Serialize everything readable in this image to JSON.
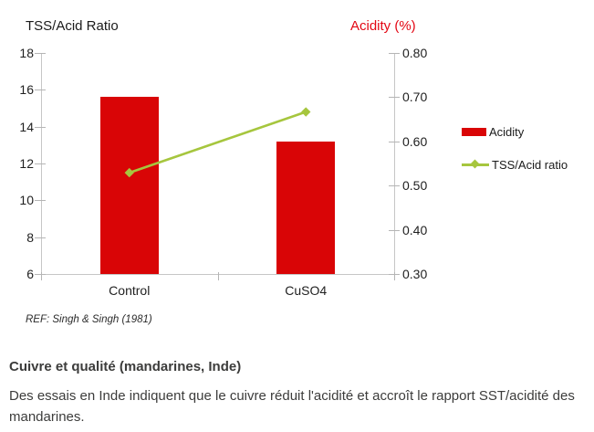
{
  "colors": {
    "bar_red": "#d90506",
    "line_green": "#a6c63e",
    "title_red": "#e30613",
    "axis_gray": "#c6c6c6",
    "text_dark": "#1f1f1f",
    "caption_text": "#3c3c3b"
  },
  "chart_data": {
    "type": "combo",
    "categories": [
      "Control",
      "CuSO4"
    ],
    "series": [
      {
        "name": "Acidity",
        "type": "bar",
        "axis": "right",
        "color": "#d90506",
        "values": [
          0.7,
          0.6
        ]
      },
      {
        "name": "TSS/Acid ratio",
        "type": "line",
        "axis": "left",
        "color": "#a6c63e",
        "values": [
          11.5,
          14.8
        ]
      }
    ],
    "left_axis": {
      "title": "TSS/Acid Ratio",
      "min": 6,
      "max": 18,
      "ticks": [
        18,
        16,
        14,
        12,
        10,
        8,
        6
      ]
    },
    "right_axis": {
      "title": "Acidity (%)",
      "min": 0.3,
      "max": 0.8,
      "ticks": [
        "0.80",
        "0.70",
        "0.60",
        "0.50",
        "0.40",
        "0.30"
      ]
    },
    "grid": false,
    "legend_position": "right"
  },
  "ref_note": "REF: Singh & Singh (1981)",
  "caption": {
    "title": "Cuivre et qualité (mandarines, Inde)",
    "body": "Des essais en Inde indiquent que le cuivre réduit l'acidité et accroît le rapport SST/acidité des mandarines."
  }
}
